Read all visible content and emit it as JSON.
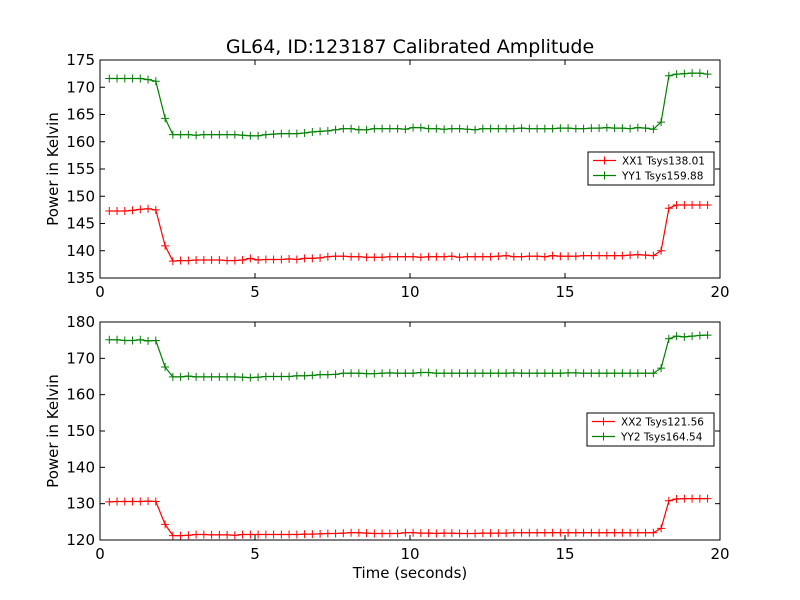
{
  "figure": {
    "title": "GL64, ID:123187 Calibrated Amplitude",
    "xlabel": "Time (seconds)"
  },
  "chart_data": [
    {
      "type": "line",
      "ylabel": "Power in Kelvin",
      "xlim": [
        0,
        20
      ],
      "ylim": [
        135,
        175
      ],
      "xticks": [
        0,
        5,
        10,
        15,
        20
      ],
      "yticks": [
        135,
        140,
        145,
        150,
        155,
        160,
        165,
        170,
        175
      ],
      "grid": false,
      "legend_position": "center-right",
      "series": [
        {
          "name": "XX1 Tsys138.01",
          "color": "#ff0000",
          "x": [
            0.3,
            0.55,
            0.8,
            1.05,
            1.3,
            1.55,
            1.8,
            2.1,
            2.35,
            2.6,
            2.85,
            3.1,
            3.35,
            3.6,
            3.85,
            4.1,
            4.35,
            4.6,
            4.85,
            5.1,
            5.35,
            5.6,
            5.85,
            6.1,
            6.35,
            6.6,
            6.85,
            7.1,
            7.35,
            7.6,
            7.85,
            8.1,
            8.35,
            8.6,
            8.85,
            9.1,
            9.35,
            9.6,
            9.85,
            10.1,
            10.35,
            10.6,
            10.85,
            11.1,
            11.35,
            11.6,
            11.85,
            12.1,
            12.35,
            12.6,
            12.85,
            13.1,
            13.35,
            13.6,
            13.85,
            14.1,
            14.35,
            14.6,
            14.85,
            15.1,
            15.35,
            15.6,
            15.85,
            16.1,
            16.35,
            16.6,
            16.85,
            17.1,
            17.35,
            17.6,
            17.85,
            18.1,
            18.35,
            18.6,
            18.85,
            19.1,
            19.35,
            19.6
          ],
          "y": [
            147.3,
            147.3,
            147.3,
            147.4,
            147.6,
            147.7,
            147.5,
            140.9,
            138.1,
            138.2,
            138.2,
            138.3,
            138.3,
            138.3,
            138.3,
            138.2,
            138.2,
            138.3,
            138.6,
            138.3,
            138.4,
            138.4,
            138.4,
            138.5,
            138.4,
            138.6,
            138.6,
            138.7,
            138.9,
            139.0,
            139.0,
            138.9,
            138.9,
            138.8,
            138.8,
            138.8,
            138.9,
            138.9,
            138.9,
            138.9,
            138.8,
            138.9,
            138.9,
            138.9,
            139.0,
            138.8,
            138.9,
            138.9,
            138.9,
            138.9,
            139.0,
            139.1,
            138.9,
            138.9,
            139.0,
            139.0,
            138.9,
            139.1,
            139.0,
            139.0,
            139.0,
            139.1,
            139.1,
            139.1,
            139.1,
            139.1,
            139.1,
            139.2,
            139.3,
            139.2,
            139.1,
            140.0,
            147.8,
            148.4,
            148.4,
            148.4,
            148.4,
            148.4
          ]
        },
        {
          "name": "YY1 Tsys159.88",
          "color": "#008000",
          "x": [
            0.3,
            0.55,
            0.8,
            1.05,
            1.3,
            1.55,
            1.8,
            2.1,
            2.35,
            2.6,
            2.85,
            3.1,
            3.35,
            3.6,
            3.85,
            4.1,
            4.35,
            4.6,
            4.85,
            5.1,
            5.35,
            5.6,
            5.85,
            6.1,
            6.35,
            6.6,
            6.85,
            7.1,
            7.35,
            7.6,
            7.85,
            8.1,
            8.35,
            8.6,
            8.85,
            9.1,
            9.35,
            9.6,
            9.85,
            10.1,
            10.35,
            10.6,
            10.85,
            11.1,
            11.35,
            11.6,
            11.85,
            12.1,
            12.35,
            12.6,
            12.85,
            13.1,
            13.35,
            13.6,
            13.85,
            14.1,
            14.35,
            14.6,
            14.85,
            15.1,
            15.35,
            15.6,
            15.85,
            16.1,
            16.35,
            16.6,
            16.85,
            17.1,
            17.35,
            17.6,
            17.85,
            18.1,
            18.35,
            18.6,
            18.85,
            19.1,
            19.35,
            19.6
          ],
          "y": [
            171.6,
            171.6,
            171.6,
            171.6,
            171.6,
            171.4,
            171.1,
            164.3,
            161.3,
            161.3,
            161.3,
            161.2,
            161.3,
            161.3,
            161.3,
            161.3,
            161.3,
            161.2,
            161.1,
            161.1,
            161.3,
            161.4,
            161.5,
            161.5,
            161.5,
            161.6,
            161.8,
            161.9,
            162.0,
            162.2,
            162.4,
            162.4,
            162.2,
            162.2,
            162.4,
            162.4,
            162.4,
            162.4,
            162.3,
            162.6,
            162.6,
            162.4,
            162.4,
            162.3,
            162.4,
            162.4,
            162.3,
            162.2,
            162.4,
            162.4,
            162.4,
            162.4,
            162.4,
            162.5,
            162.4,
            162.4,
            162.4,
            162.4,
            162.5,
            162.5,
            162.4,
            162.4,
            162.5,
            162.5,
            162.6,
            162.5,
            162.5,
            162.4,
            162.6,
            162.5,
            162.3,
            163.6,
            172.1,
            172.4,
            172.5,
            172.6,
            172.6,
            172.4
          ]
        }
      ]
    },
    {
      "type": "line",
      "ylabel": "Power in Kelvin",
      "xlabel": "Time (seconds)",
      "xlim": [
        0,
        20
      ],
      "ylim": [
        120,
        180
      ],
      "xticks": [
        0,
        5,
        10,
        15,
        20
      ],
      "yticks": [
        120,
        130,
        140,
        150,
        160,
        170,
        180
      ],
      "grid": false,
      "legend_position": "center-right",
      "series": [
        {
          "name": "XX2 Tsys121.56",
          "color": "#ff0000",
          "x": [
            0.3,
            0.55,
            0.8,
            1.05,
            1.3,
            1.55,
            1.8,
            2.1,
            2.35,
            2.6,
            2.85,
            3.1,
            3.35,
            3.6,
            3.85,
            4.1,
            4.35,
            4.6,
            4.85,
            5.1,
            5.35,
            5.6,
            5.85,
            6.1,
            6.35,
            6.6,
            6.85,
            7.1,
            7.35,
            7.6,
            7.85,
            8.1,
            8.35,
            8.6,
            8.85,
            9.1,
            9.35,
            9.6,
            9.85,
            10.1,
            10.35,
            10.6,
            10.85,
            11.1,
            11.35,
            11.6,
            11.85,
            12.1,
            12.35,
            12.6,
            12.85,
            13.1,
            13.35,
            13.6,
            13.85,
            14.1,
            14.35,
            14.6,
            14.85,
            15.1,
            15.35,
            15.6,
            15.85,
            16.1,
            16.35,
            16.6,
            16.85,
            17.1,
            17.35,
            17.6,
            17.85,
            18.1,
            18.35,
            18.6,
            18.85,
            19.1,
            19.35,
            19.6
          ],
          "y": [
            130.5,
            130.6,
            130.6,
            130.6,
            130.6,
            130.7,
            130.6,
            124.3,
            121.2,
            121.2,
            121.3,
            121.5,
            121.5,
            121.4,
            121.4,
            121.4,
            121.3,
            121.5,
            121.5,
            121.5,
            121.5,
            121.5,
            121.5,
            121.5,
            121.5,
            121.6,
            121.6,
            121.7,
            121.8,
            121.8,
            121.9,
            122.0,
            122.0,
            121.9,
            121.8,
            121.8,
            121.8,
            121.8,
            122.0,
            122.0,
            121.9,
            121.9,
            121.8,
            121.9,
            121.9,
            121.8,
            121.8,
            121.8,
            121.9,
            121.9,
            121.9,
            121.9,
            122.0,
            122.0,
            122.0,
            122.0,
            122.0,
            122.0,
            122.0,
            122.0,
            122.0,
            122.0,
            122.0,
            122.0,
            122.0,
            122.0,
            122.0,
            122.0,
            122.0,
            122.0,
            122.0,
            123.2,
            130.8,
            131.3,
            131.4,
            131.4,
            131.4,
            131.4
          ]
        },
        {
          "name": "YY2 Tsys164.54",
          "color": "#008000",
          "x": [
            0.3,
            0.55,
            0.8,
            1.05,
            1.3,
            1.55,
            1.8,
            2.1,
            2.35,
            2.6,
            2.85,
            3.1,
            3.35,
            3.6,
            3.85,
            4.1,
            4.35,
            4.6,
            4.85,
            5.1,
            5.35,
            5.6,
            5.85,
            6.1,
            6.35,
            6.6,
            6.85,
            7.1,
            7.35,
            7.6,
            7.85,
            8.1,
            8.35,
            8.6,
            8.85,
            9.1,
            9.35,
            9.6,
            9.85,
            10.1,
            10.35,
            10.6,
            10.85,
            11.1,
            11.35,
            11.6,
            11.85,
            12.1,
            12.35,
            12.6,
            12.85,
            13.1,
            13.35,
            13.6,
            13.85,
            14.1,
            14.35,
            14.6,
            14.85,
            15.1,
            15.35,
            15.6,
            15.85,
            16.1,
            16.35,
            16.6,
            16.85,
            17.1,
            17.35,
            17.6,
            17.85,
            18.1,
            18.35,
            18.6,
            18.85,
            19.1,
            19.35,
            19.6
          ],
          "y": [
            175.1,
            175.1,
            174.9,
            174.9,
            175.1,
            174.8,
            174.9,
            167.6,
            164.9,
            164.9,
            165.1,
            164.9,
            164.9,
            164.9,
            164.9,
            164.9,
            164.9,
            164.8,
            164.7,
            164.8,
            165.0,
            165.0,
            165.0,
            165.0,
            165.2,
            165.2,
            165.3,
            165.5,
            165.5,
            165.6,
            165.9,
            165.9,
            165.9,
            165.8,
            165.8,
            165.9,
            166.0,
            165.9,
            165.9,
            165.9,
            166.1,
            166.1,
            165.9,
            165.9,
            165.9,
            165.9,
            165.9,
            165.9,
            165.9,
            165.9,
            165.9,
            165.9,
            166.0,
            165.9,
            165.9,
            165.9,
            165.9,
            165.9,
            165.9,
            166.0,
            166.0,
            165.9,
            165.9,
            165.9,
            165.9,
            165.9,
            165.9,
            165.9,
            165.9,
            165.9,
            165.9,
            167.3,
            175.4,
            176.1,
            175.9,
            176.1,
            176.3,
            176.4
          ]
        }
      ]
    }
  ]
}
